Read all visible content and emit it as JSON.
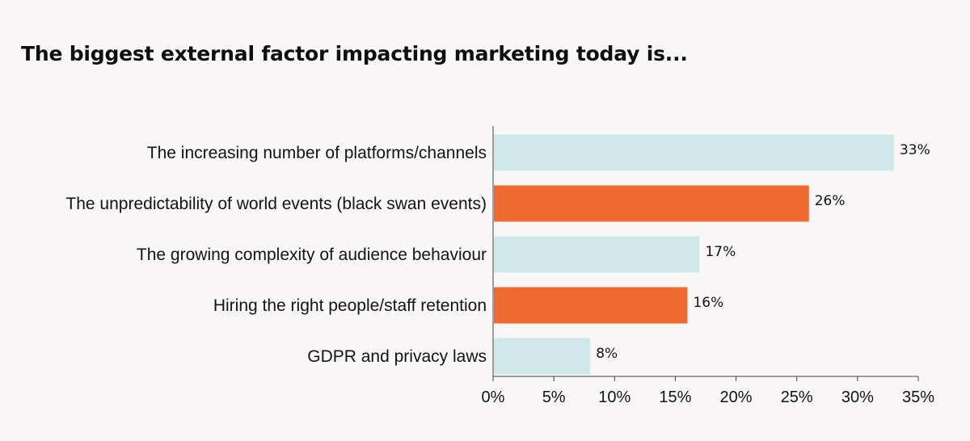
{
  "chart_data": {
    "type": "bar",
    "orientation": "horizontal",
    "title": "The biggest external factor impacting marketing today is...",
    "categories": [
      "The increasing number of platforms/channels",
      "The unpredictability of world events (black swan events)",
      "The growing complexity of audience behaviour",
      "Hiring the right people/staff retention",
      "GDPR and privacy laws"
    ],
    "values": [
      33,
      26,
      17,
      16,
      8
    ],
    "value_labels": [
      "33%",
      "26%",
      "17%",
      "16%",
      "8%"
    ],
    "bar_colors": [
      "#d0e8e9",
      "#ef6a30",
      "#d0e8e9",
      "#ef6a30",
      "#d0e8e9"
    ],
    "xlim": [
      0,
      35
    ],
    "x_ticks": [
      0,
      5,
      10,
      15,
      20,
      25,
      30,
      35
    ],
    "x_tick_labels": [
      "0%",
      "5%",
      "10%",
      "15%",
      "20%",
      "25%",
      "30%",
      "35%"
    ],
    "xlabel": "",
    "ylabel": "",
    "grid": false,
    "legend": "none",
    "colors": {
      "background": "#f8f6f6",
      "axis": "#444444",
      "text": "#141414"
    }
  }
}
